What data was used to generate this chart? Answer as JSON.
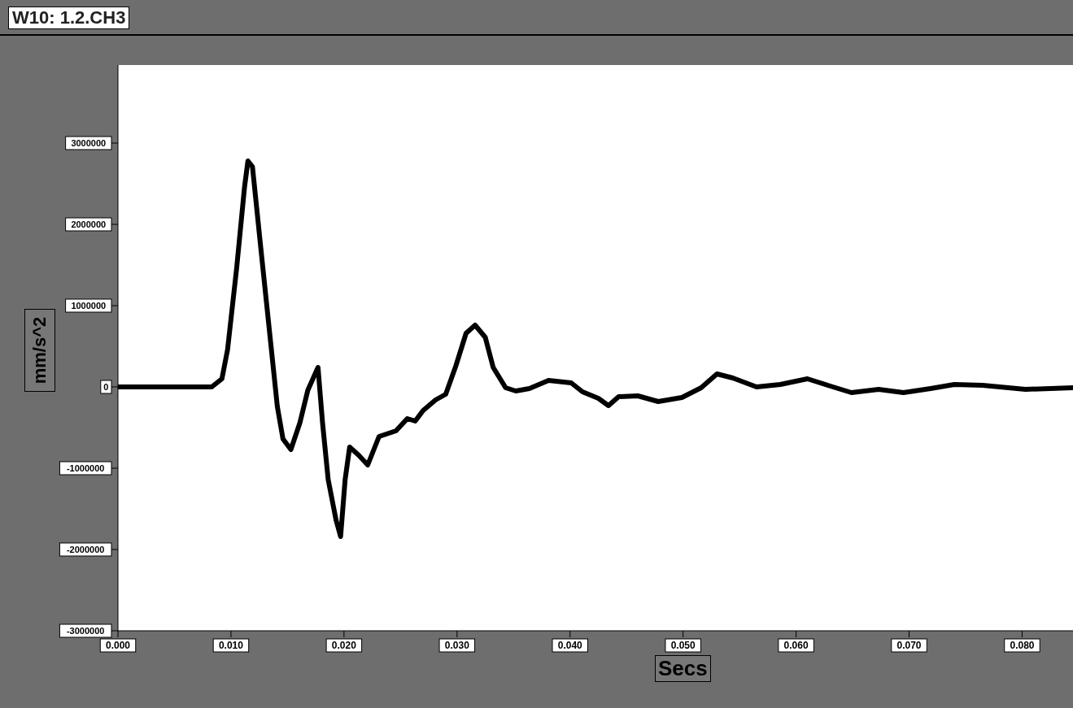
{
  "chart_data": {
    "type": "line",
    "title": "W10: 1.2.CH3",
    "xlabel": "Secs",
    "ylabel": "mm/s^2",
    "x": [
      0,
      0.0083,
      0.0092,
      0.0097,
      0.0105,
      0.0112,
      0.0115,
      0.0119,
      0.0126,
      0.0135,
      0.0141,
      0.0146,
      0.0153,
      0.0161,
      0.0168,
      0.0177,
      0.0181,
      0.0186,
      0.0193,
      0.0197,
      0.0201,
      0.0205,
      0.0213,
      0.0221,
      0.0231,
      0.0246,
      0.0256,
      0.0263,
      0.027,
      0.0281,
      0.029,
      0.0299,
      0.0308,
      0.0316,
      0.0325,
      0.0332,
      0.0343,
      0.0352,
      0.0364,
      0.0381,
      0.0401,
      0.0411,
      0.0425,
      0.0434,
      0.0443,
      0.046,
      0.0478,
      0.0499,
      0.0516,
      0.053,
      0.0544,
      0.0565,
      0.0586,
      0.061,
      0.0628,
      0.0649,
      0.0673,
      0.0695,
      0.0719,
      0.074,
      0.0765,
      0.0803,
      0.0845
    ],
    "series": [
      {
        "color": "#000000",
        "values": [
          0,
          0,
          100000,
          460000,
          1460000,
          2460000,
          2780000,
          2710000,
          1760000,
          560000,
          -240000,
          -640000,
          -770000,
          -440000,
          -40000,
          240000,
          -440000,
          -1140000,
          -1640000,
          -1840000,
          -1140000,
          -740000,
          -840000,
          -960000,
          -610000,
          -540000,
          -390000,
          -420000,
          -290000,
          -160000,
          -90000,
          260000,
          660000,
          760000,
          610000,
          240000,
          -10000,
          -50000,
          -20000,
          80000,
          50000,
          -60000,
          -140000,
          -230000,
          -120000,
          -110000,
          -180000,
          -130000,
          -10000,
          160000,
          110000,
          0,
          30000,
          100000,
          20000,
          -70000,
          -30000,
          -70000,
          -20000,
          30000,
          20000,
          -30000,
          -10000
        ]
      }
    ],
    "xlim": [
      0,
      0.0845
    ],
    "ylim": [
      -3000000,
      3960000
    ],
    "xticks": [
      {
        "value": 0,
        "label": "0.000"
      },
      {
        "value": 0.01,
        "label": "0.010"
      },
      {
        "value": 0.02,
        "label": "0.020"
      },
      {
        "value": 0.03,
        "label": "0.030"
      },
      {
        "value": 0.04,
        "label": "0.040"
      },
      {
        "value": 0.05,
        "label": "0.050"
      },
      {
        "value": 0.06,
        "label": "0.060"
      },
      {
        "value": 0.07,
        "label": "0.070"
      },
      {
        "value": 0.08,
        "label": "0.080"
      }
    ],
    "yticks": [
      -3000000,
      -2000000,
      -1000000,
      0,
      1000000,
      2000000,
      3000000
    ],
    "grid": false,
    "legend": false,
    "marker": "none",
    "line_style": "solid"
  }
}
